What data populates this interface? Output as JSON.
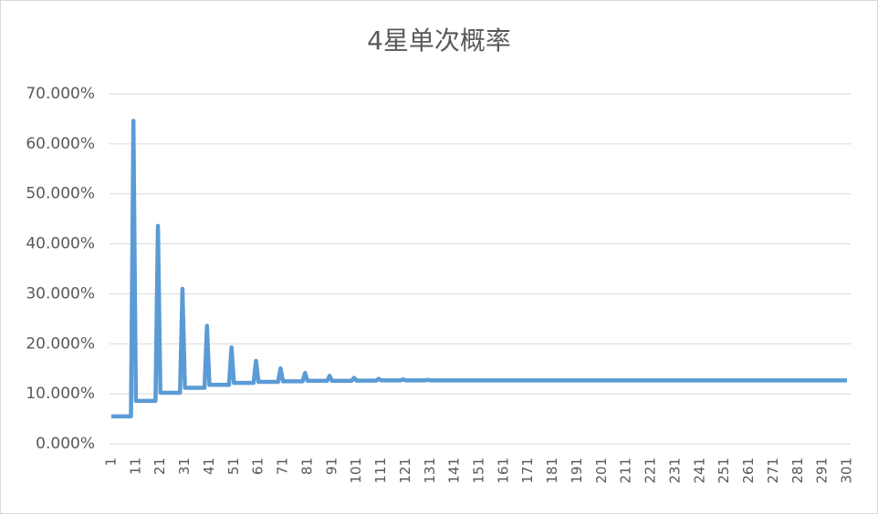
{
  "chart_data": {
    "type": "line",
    "title": "4星单次概率",
    "x": [
      1,
      2,
      3,
      4,
      5,
      6,
      7,
      8,
      9,
      10,
      11,
      12,
      13,
      14,
      15,
      16,
      17,
      18,
      19,
      20,
      21,
      22,
      23,
      24,
      25,
      26,
      27,
      28,
      29,
      30,
      31,
      32,
      33,
      34,
      35,
      36,
      37,
      38,
      39,
      40,
      41,
      42,
      43,
      44,
      45,
      46,
      47,
      48,
      49,
      50,
      51,
      52,
      53,
      54,
      55,
      56,
      57,
      58,
      59,
      60,
      61,
      62,
      63,
      64,
      65,
      66,
      67,
      68,
      69,
      70,
      71,
      72,
      73,
      74,
      75,
      76,
      77,
      78,
      79,
      80,
      81,
      82,
      83,
      84,
      85,
      86,
      87,
      88,
      89,
      90,
      91,
      92,
      93,
      94,
      95,
      96,
      97,
      98,
      99,
      100,
      101,
      102,
      103,
      104,
      105,
      106,
      107,
      108,
      109,
      110,
      111,
      112,
      113,
      114,
      115,
      116,
      117,
      118,
      119,
      120,
      121,
      122,
      123,
      124,
      125,
      126,
      127,
      128,
      129,
      130,
      131,
      132,
      133,
      134,
      135,
      136,
      137,
      138,
      139,
      140,
      141,
      142,
      143,
      144,
      145,
      146,
      147,
      148,
      149,
      150,
      151,
      152,
      153,
      154,
      155,
      156,
      157,
      158,
      159,
      160,
      161,
      162,
      163,
      164,
      165,
      166,
      167,
      168,
      169,
      170,
      171,
      172,
      173,
      174,
      175,
      176,
      177,
      178,
      179,
      180,
      181,
      182,
      183,
      184,
      185,
      186,
      187,
      188,
      189,
      190,
      191,
      192,
      193,
      194,
      195,
      196,
      197,
      198,
      199,
      200,
      201,
      202,
      203,
      204,
      205,
      206,
      207,
      208,
      209,
      210,
      211,
      212,
      213,
      214,
      215,
      216,
      217,
      218,
      219,
      220,
      221,
      222,
      223,
      224,
      225,
      226,
      227,
      228,
      229,
      230,
      231,
      232,
      233,
      234,
      235,
      236,
      237,
      238,
      239,
      240,
      241,
      242,
      243,
      244,
      245,
      246,
      247,
      248,
      249,
      250,
      251,
      252,
      253,
      254,
      255,
      256,
      257,
      258,
      259,
      260,
      261,
      262,
      263,
      264,
      265,
      266,
      267,
      268,
      269,
      270,
      271,
      272,
      273,
      274,
      275,
      276,
      277,
      278,
      279,
      280,
      281,
      282,
      283,
      284,
      285,
      286,
      287,
      288,
      289,
      290,
      291,
      292,
      293,
      294,
      295,
      296,
      297,
      298,
      299,
      300,
      301
    ],
    "values": [
      5.5,
      5.5,
      5.5,
      5.5,
      5.5,
      5.5,
      5.5,
      5.5,
      5.5,
      64.6,
      8.6,
      8.6,
      8.6,
      8.6,
      8.6,
      8.6,
      8.6,
      8.6,
      8.6,
      43.6,
      10.2,
      10.2,
      10.2,
      10.2,
      10.2,
      10.2,
      10.2,
      10.2,
      10.2,
      31.0,
      11.2,
      11.2,
      11.2,
      11.2,
      11.2,
      11.2,
      11.2,
      11.2,
      11.2,
      23.6,
      11.8,
      11.8,
      11.8,
      11.8,
      11.8,
      11.8,
      11.8,
      11.8,
      11.8,
      19.3,
      12.2,
      12.2,
      12.2,
      12.2,
      12.2,
      12.2,
      12.2,
      12.2,
      12.2,
      16.6,
      12.4,
      12.4,
      12.4,
      12.4,
      12.4,
      12.4,
      12.4,
      12.4,
      12.4,
      15.1,
      12.5,
      12.5,
      12.5,
      12.5,
      12.5,
      12.5,
      12.5,
      12.5,
      12.5,
      14.2,
      12.6,
      12.6,
      12.6,
      12.6,
      12.6,
      12.6,
      12.6,
      12.6,
      12.6,
      13.6,
      12.6,
      12.6,
      12.6,
      12.6,
      12.6,
      12.6,
      12.6,
      12.6,
      12.6,
      13.2,
      12.65,
      12.65,
      12.65,
      12.65,
      12.65,
      12.65,
      12.65,
      12.65,
      12.65,
      13.0,
      12.7,
      12.7,
      12.7,
      12.7,
      12.7,
      12.7,
      12.7,
      12.7,
      12.7,
      12.9,
      12.7,
      12.7,
      12.7,
      12.7,
      12.7,
      12.7,
      12.7,
      12.7,
      12.7,
      12.8,
      12.7,
      12.7,
      12.7,
      12.7,
      12.7,
      12.7,
      12.7,
      12.7,
      12.7,
      12.7,
      12.7,
      12.7,
      12.7,
      12.7,
      12.7,
      12.7,
      12.7,
      12.7,
      12.7,
      12.7,
      12.7,
      12.7,
      12.7,
      12.7,
      12.7,
      12.7,
      12.7,
      12.7,
      12.7,
      12.7,
      12.7,
      12.7,
      12.7,
      12.7,
      12.7,
      12.7,
      12.7,
      12.7,
      12.7,
      12.7,
      12.7,
      12.7,
      12.7,
      12.7,
      12.7,
      12.7,
      12.7,
      12.7,
      12.7,
      12.7,
      12.7,
      12.7,
      12.7,
      12.7,
      12.7,
      12.7,
      12.7,
      12.7,
      12.7,
      12.7,
      12.7,
      12.7,
      12.7,
      12.7,
      12.7,
      12.7,
      12.7,
      12.7,
      12.7,
      12.7,
      12.7,
      12.7,
      12.7,
      12.7,
      12.7,
      12.7,
      12.7,
      12.7,
      12.7,
      12.7,
      12.7,
      12.7,
      12.7,
      12.7,
      12.7,
      12.7,
      12.7,
      12.7,
      12.7,
      12.7,
      12.7,
      12.7,
      12.7,
      12.7,
      12.7,
      12.7,
      12.7,
      12.7,
      12.7,
      12.7,
      12.7,
      12.7,
      12.7,
      12.7,
      12.7,
      12.7,
      12.7,
      12.7,
      12.7,
      12.7,
      12.7,
      12.7,
      12.7,
      12.7,
      12.7,
      12.7,
      12.7,
      12.7,
      12.7,
      12.7,
      12.7,
      12.7,
      12.7,
      12.7,
      12.7,
      12.7,
      12.7,
      12.7,
      12.7,
      12.7,
      12.7,
      12.7,
      12.7,
      12.7,
      12.7,
      12.7,
      12.7,
      12.7,
      12.7,
      12.7,
      12.7,
      12.7,
      12.7,
      12.7,
      12.7,
      12.7,
      12.7,
      12.7,
      12.7,
      12.7,
      12.7,
      12.7,
      12.7,
      12.7,
      12.7,
      12.7,
      12.7,
      12.7,
      12.7,
      12.7,
      12.7,
      12.7,
      12.7,
      12.7,
      12.7,
      12.7,
      12.7,
      12.7,
      12.7,
      12.7,
      12.7
    ],
    "color": "#5b9bd5",
    "xlim": [
      1,
      301
    ],
    "xticks": [
      1,
      11,
      21,
      31,
      41,
      51,
      61,
      71,
      81,
      91,
      101,
      111,
      121,
      131,
      141,
      151,
      161,
      171,
      181,
      191,
      201,
      211,
      221,
      231,
      241,
      251,
      261,
      271,
      281,
      291,
      301
    ],
    "ylim": [
      0,
      70
    ],
    "yticks": [
      {
        "value": 0,
        "label": "0.000%"
      },
      {
        "value": 10,
        "label": "10.000%"
      },
      {
        "value": 20,
        "label": "20.000%"
      },
      {
        "value": 30,
        "label": "30.000%"
      },
      {
        "value": 40,
        "label": "40.000%"
      },
      {
        "value": 50,
        "label": "50.000%"
      },
      {
        "value": 60,
        "label": "60.000%"
      },
      {
        "value": 70,
        "label": "70.000%"
      }
    ],
    "grid": true
  }
}
